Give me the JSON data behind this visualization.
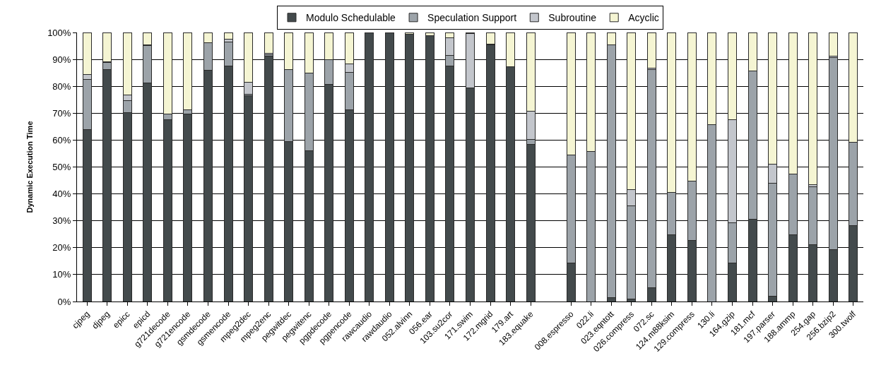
{
  "chart_data": {
    "type": "bar",
    "stacked": true,
    "ylabel": "Dynamic Execution Time",
    "categories": [
      "cjpeg",
      "djpeg",
      "epicc",
      "epicd",
      "g721decode",
      "g721encode",
      "gsmdecode",
      "gsmencode",
      "mpeg2dec",
      "mpeg2enc",
      "pegwitdec",
      "pegwitenc",
      "pgpdecode",
      "pgpencode",
      "rawcaudio",
      "rawdaudio",
      "052.alvinn",
      "056.ear",
      "103.su2cor",
      "171.swim",
      "172.mgrid",
      "179.art",
      "183.equake",
      null,
      "008.espresso",
      "022.li",
      "023.eqntott",
      "026.compress",
      "072.sc",
      "124.m88ksim",
      "129.compress",
      "130.li",
      "164.gzip",
      "181.mcf",
      "197.parser",
      "188.ammp",
      "254.gap",
      "256.bzip2",
      "300.twolf"
    ],
    "series": [
      {
        "name": "Modulo Schedulable",
        "color": "#434a4c",
        "values": [
          64,
          86.3,
          70.2,
          81.3,
          67.7,
          69.7,
          85.9,
          87.5,
          76.5,
          91.2,
          59.4,
          56,
          80.6,
          71.2,
          100,
          100,
          99.4,
          98.9,
          87.5,
          79.3,
          95.5,
          87.2,
          58.3,
          null,
          14.2,
          0,
          1.5,
          1,
          5,
          24.9,
          22.8,
          0,
          14.4,
          30.6,
          2,
          24.7,
          21.2,
          19.3,
          28.1
        ]
      },
      {
        "name": "Speculation Support",
        "color": "#9ca3a9",
        "values": [
          18.5,
          2.6,
          4.6,
          13.8,
          1.9,
          1.5,
          10.2,
          9,
          0.5,
          0.6,
          26.8,
          28.8,
          9.2,
          14.1,
          0,
          0,
          0,
          0,
          4.1,
          0,
          0.2,
          0,
          1.9,
          null,
          40.3,
          55.7,
          93.8,
          34.5,
          81.2,
          15.7,
          22,
          65.8,
          14.8,
          55.2,
          41.9,
          22.7,
          21.5,
          71.4,
          31
        ]
      },
      {
        "name": "Subroutine",
        "color": "#c3c6cc",
        "values": [
          1.8,
          0.3,
          2.1,
          0.2,
          0.1,
          0.1,
          0,
          0.9,
          4.5,
          0.4,
          0,
          0,
          0,
          3.1,
          0,
          0,
          0,
          0,
          6.5,
          20.3,
          0,
          0,
          10.5,
          null,
          0,
          0,
          0.2,
          6.2,
          0.6,
          0,
          0,
          0,
          38.3,
          0,
          7.2,
          0,
          0.7,
          0.6,
          0
        ]
      },
      {
        "name": "Acyclic",
        "color": "#f5f5d3",
        "values": [
          15.7,
          10.8,
          23.1,
          4.7,
          30.3,
          28.7,
          3.9,
          2.6,
          18.5,
          7.8,
          13.8,
          15.2,
          10.2,
          11.6,
          0,
          0,
          0.6,
          1.1,
          1.9,
          0.4,
          4.3,
          12.8,
          29.3,
          null,
          45.5,
          44.3,
          4.5,
          58.3,
          13.2,
          59.4,
          55.2,
          34.2,
          32.5,
          14.2,
          48.9,
          52.6,
          56.6,
          8.7,
          40.9
        ]
      }
    ],
    "ylim": [
      0,
      100
    ],
    "yticks": [
      {
        "value": 0,
        "label": "0%"
      },
      {
        "value": 10,
        "label": "10%"
      },
      {
        "value": 20,
        "label": "20%"
      },
      {
        "value": 30,
        "label": "30%"
      },
      {
        "value": 40,
        "label": "40%"
      },
      {
        "value": 50,
        "label": "50%"
      },
      {
        "value": 60,
        "label": "60%"
      },
      {
        "value": 70,
        "label": "70%"
      },
      {
        "value": 80,
        "label": "80%"
      },
      {
        "value": 90,
        "label": "90%"
      },
      {
        "value": 100,
        "label": "100%"
      }
    ],
    "grid": "y",
    "legend": "top"
  }
}
